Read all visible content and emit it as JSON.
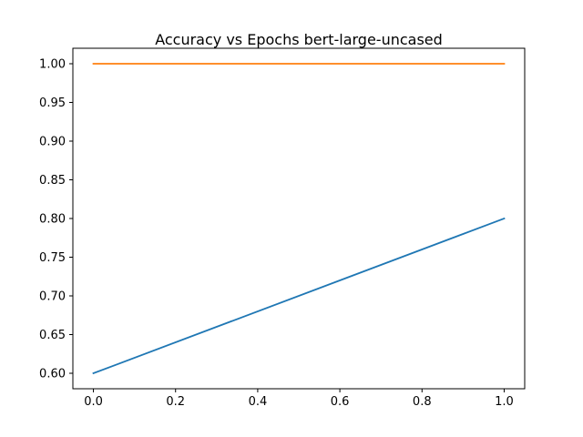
{
  "chart_data": {
    "type": "line",
    "title": "Accuracy vs Epochs bert-large-uncased",
    "xlabel": "",
    "ylabel": "",
    "xlim": [
      -0.05,
      1.05
    ],
    "ylim": [
      0.58,
      1.02
    ],
    "x_ticks": [
      0.0,
      0.2,
      0.4,
      0.6,
      0.8,
      1.0
    ],
    "x_tick_labels": [
      "0.0",
      "0.2",
      "0.4",
      "0.6",
      "0.8",
      "1.0"
    ],
    "y_ticks": [
      0.6,
      0.65,
      0.7,
      0.75,
      0.8,
      0.85,
      0.9,
      0.95,
      1.0
    ],
    "y_tick_labels": [
      "0.60",
      "0.65",
      "0.70",
      "0.75",
      "0.80",
      "0.85",
      "0.90",
      "0.95",
      "1.00"
    ],
    "grid": false,
    "series": [
      {
        "x": [
          0,
          1
        ],
        "values": [
          0.6,
          0.8
        ],
        "color": "#1f77b4"
      },
      {
        "x": [
          0,
          1
        ],
        "values": [
          1.0,
          1.0
        ],
        "color": "#ff7f0e"
      }
    ]
  }
}
